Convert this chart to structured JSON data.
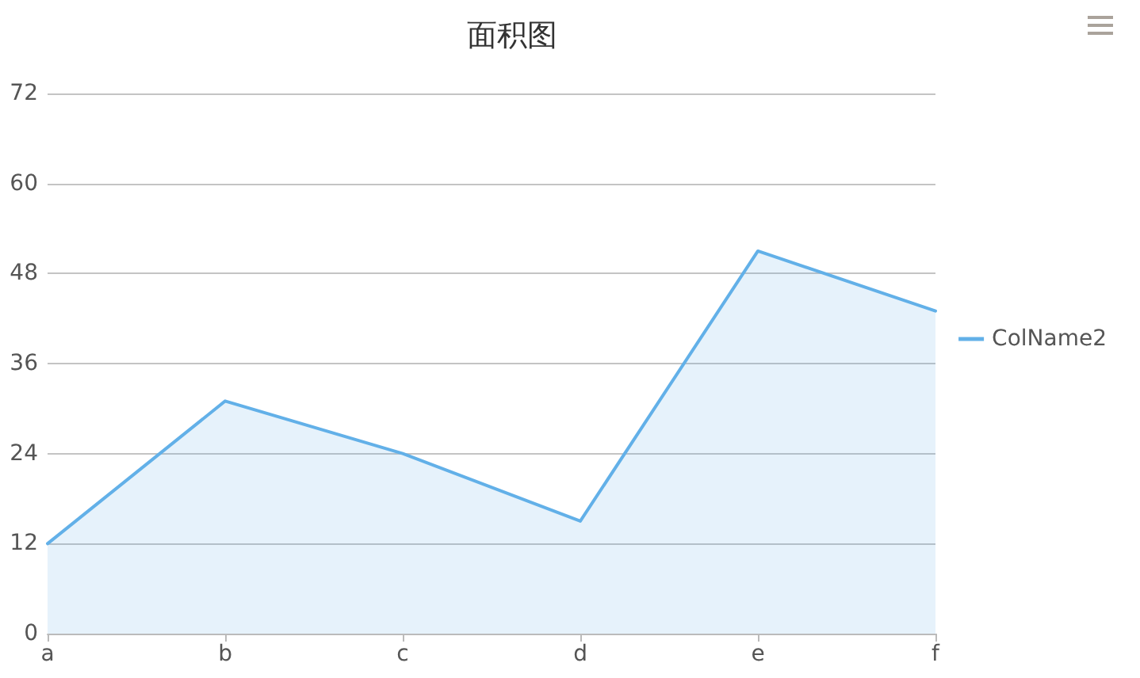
{
  "chart_data": {
    "type": "area",
    "title": "面积图",
    "categories": [
      "a",
      "b",
      "c",
      "d",
      "e",
      "f"
    ],
    "series": [
      {
        "name": "ColName2",
        "color": "#62b0e8",
        "values": [
          12,
          31,
          24,
          15,
          51,
          43
        ]
      }
    ],
    "ylim": [
      0,
      72
    ],
    "yticks": [
      0,
      12,
      24,
      36,
      48,
      60,
      72
    ],
    "grid": "y",
    "legend": "right",
    "marker": "none"
  }
}
